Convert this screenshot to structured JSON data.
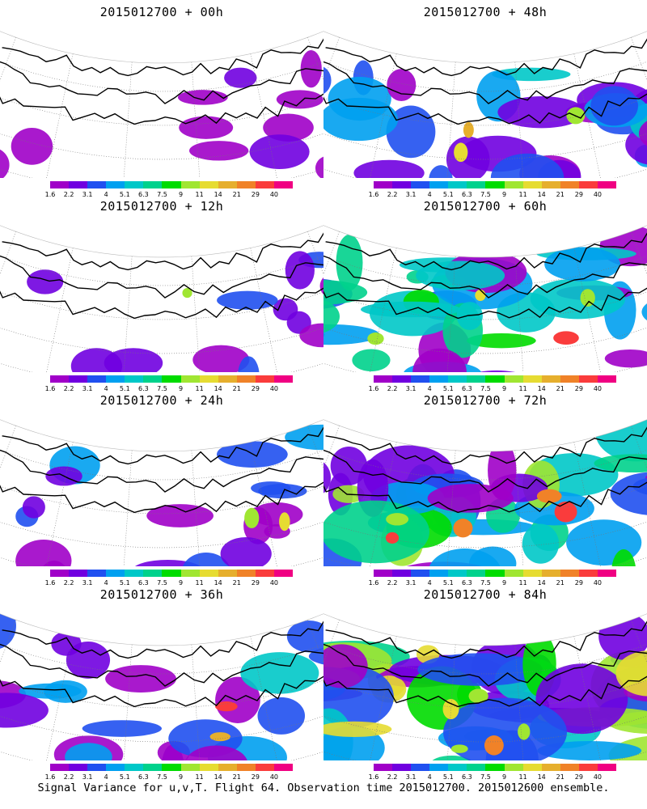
{
  "panels": [
    {
      "title": "2015012700 + 00h",
      "lead_hours": 0,
      "intensity": 0.05
    },
    {
      "title": "2015012700 + 48h",
      "lead_hours": 48,
      "intensity": 0.45
    },
    {
      "title": "2015012700 + 12h",
      "lead_hours": 12,
      "intensity": 0.15
    },
    {
      "title": "2015012700 + 60h",
      "lead_hours": 60,
      "intensity": 0.6
    },
    {
      "title": "2015012700 + 24h",
      "lead_hours": 24,
      "intensity": 0.25
    },
    {
      "title": "2015012700 + 72h",
      "lead_hours": 72,
      "intensity": 0.75
    },
    {
      "title": "2015012700 + 36h",
      "lead_hours": 36,
      "intensity": 0.35
    },
    {
      "title": "2015012700 + 84h",
      "lead_hours": 84,
      "intensity": 0.9
    }
  ],
  "colorbar": {
    "labels": [
      "1.6",
      "2.2",
      "3.1",
      "4",
      "5.1",
      "6.3",
      "7.5",
      "9",
      "11",
      "14",
      "21",
      "29",
      "40"
    ],
    "colors": [
      "#a000c8",
      "#7000e0",
      "#2050f0",
      "#00a0f0",
      "#00c8c8",
      "#00d28c",
      "#00dc00",
      "#a0e632",
      "#e6dc32",
      "#e6af2d",
      "#f08228",
      "#fa3c3c",
      "#f00082"
    ]
  },
  "caption": "Signal Variance for u,v,T. Flight 64. Observation time 2015012700. 2015012600 ensemble."
}
